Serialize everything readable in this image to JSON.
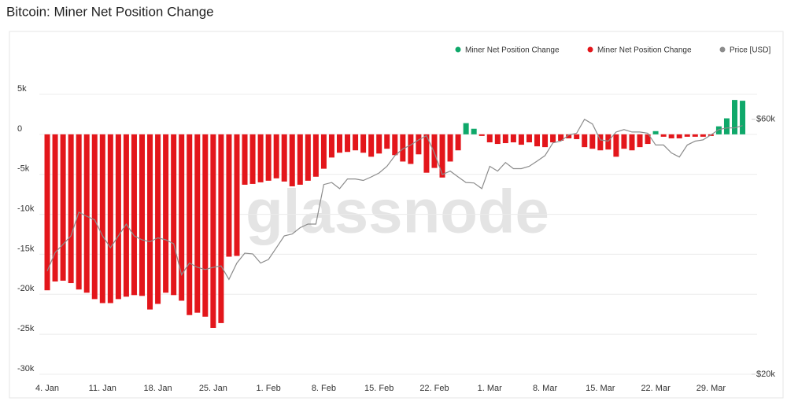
{
  "chart_data": {
    "type": "bar",
    "title": "Bitcoin: Miner Net Position Change",
    "watermark": "glassnode",
    "legend": "top-right",
    "grid": true,
    "categories": [
      "4. Jan",
      null,
      null,
      null,
      null,
      null,
      null,
      "11. Jan",
      null,
      null,
      null,
      null,
      null,
      null,
      "18. Jan",
      null,
      null,
      null,
      null,
      null,
      null,
      "25. Jan",
      null,
      null,
      null,
      null,
      null,
      null,
      "1. Feb",
      null,
      null,
      null,
      null,
      null,
      null,
      "8. Feb",
      null,
      null,
      null,
      null,
      null,
      null,
      "15. Feb",
      null,
      null,
      null,
      null,
      null,
      null,
      "22. Feb",
      null,
      null,
      null,
      null,
      null,
      null,
      "1. Mar",
      null,
      null,
      null,
      null,
      null,
      null,
      "8. Mar",
      null,
      null,
      null,
      null,
      null,
      null,
      "15. Mar",
      null,
      null,
      null,
      null,
      null,
      null,
      "22. Mar",
      null,
      null,
      null,
      null,
      null,
      null,
      "29. Mar",
      null,
      null,
      null,
      null
    ],
    "ylim": [
      -30000,
      5000
    ],
    "yticks": [
      {
        "value": 5000,
        "label": "5k"
      },
      {
        "value": 0,
        "label": "0"
      },
      {
        "value": -5000,
        "label": "-5k"
      },
      {
        "value": -10000,
        "label": "-10k"
      },
      {
        "value": -15000,
        "label": "-15k"
      },
      {
        "value": -20000,
        "label": "-20k"
      },
      {
        "value": -25000,
        "label": "-25k"
      },
      {
        "value": -30000,
        "label": "-30k"
      }
    ],
    "y2lim": [
      20000,
      66800
    ],
    "y2scale": "log",
    "y2ticks": [
      {
        "value": 60000,
        "label": "$60k"
      },
      {
        "value": 20000,
        "label": "$20k"
      }
    ],
    "series": [
      {
        "name": "Miner Net Position Change",
        "color": "#0fa86a",
        "values": [
          null,
          null,
          null,
          null,
          null,
          null,
          null,
          null,
          null,
          null,
          null,
          null,
          null,
          null,
          null,
          null,
          null,
          null,
          null,
          null,
          null,
          null,
          null,
          null,
          null,
          null,
          null,
          null,
          null,
          null,
          null,
          null,
          null,
          null,
          null,
          null,
          null,
          null,
          null,
          null,
          null,
          null,
          null,
          null,
          null,
          null,
          null,
          null,
          null,
          null,
          null,
          null,
          null,
          1400,
          700,
          null,
          null,
          null,
          null,
          null,
          null,
          null,
          null,
          null,
          null,
          null,
          null,
          null,
          null,
          null,
          null,
          null,
          null,
          null,
          null,
          null,
          null,
          400,
          null,
          null,
          null,
          null,
          null,
          null,
          null,
          1000,
          2000,
          4300,
          4200
        ]
      },
      {
        "name": "Miner Net Position Change",
        "color": "#e3161b",
        "values": [
          -19500,
          -18400,
          -18300,
          -18600,
          -19400,
          -19800,
          -20600,
          -21100,
          -21100,
          -20600,
          -20300,
          -20100,
          -20200,
          -21900,
          -21200,
          -19800,
          -20100,
          -20800,
          -22600,
          -22300,
          -22800,
          -24200,
          -23600,
          -15300,
          -15200,
          -6300,
          -6200,
          -6000,
          -5800,
          -5500,
          -5900,
          -6500,
          -6300,
          -5800,
          -5300,
          -4300,
          -2900,
          -2300,
          -2200,
          -2000,
          -2300,
          -2800,
          -2400,
          -1800,
          -2600,
          -3400,
          -3700,
          -2500,
          -4800,
          -4200,
          -5400,
          -3400,
          -2000,
          null,
          null,
          -200,
          -1000,
          -1200,
          -1100,
          -1000,
          -1300,
          -1000,
          -1500,
          -1600,
          -1000,
          -800,
          -500,
          -600,
          -1600,
          -1800,
          -2000,
          -1900,
          -2800,
          -1800,
          -2000,
          -1600,
          -1200,
          null,
          -300,
          -500,
          -500,
          -300,
          -300,
          -300,
          -200,
          null,
          null,
          null,
          null
        ]
      },
      {
        "name": "Price [USD]",
        "color": "#8c8c8c",
        "axis": "y2",
        "values": [
          31200,
          33800,
          35000,
          36300,
          40200,
          39500,
          38900,
          36300,
          34500,
          36300,
          38200,
          36300,
          35700,
          35400,
          36000,
          35700,
          35100,
          30700,
          32300,
          31700,
          31400,
          31700,
          31900,
          30100,
          32300,
          33700,
          33600,
          32300,
          32800,
          34500,
          36300,
          36600,
          37600,
          38200,
          38200,
          45300,
          45700,
          44500,
          46400,
          46400,
          46100,
          46800,
          47600,
          49000,
          51300,
          52800,
          53700,
          54900,
          55900,
          51900,
          47300,
          48000,
          46800,
          45700,
          45600,
          44500,
          49000,
          48000,
          49800,
          48500,
          48500,
          49000,
          50100,
          51300,
          54200,
          54600,
          56100,
          56500,
          60000,
          58800,
          54900,
          54600,
          56800,
          57400,
          56800,
          56800,
          56500,
          53700,
          53700,
          51900,
          51000,
          53700,
          54600,
          54900,
          56100,
          57400,
          57800,
          57800,
          58400
        ]
      }
    ]
  }
}
